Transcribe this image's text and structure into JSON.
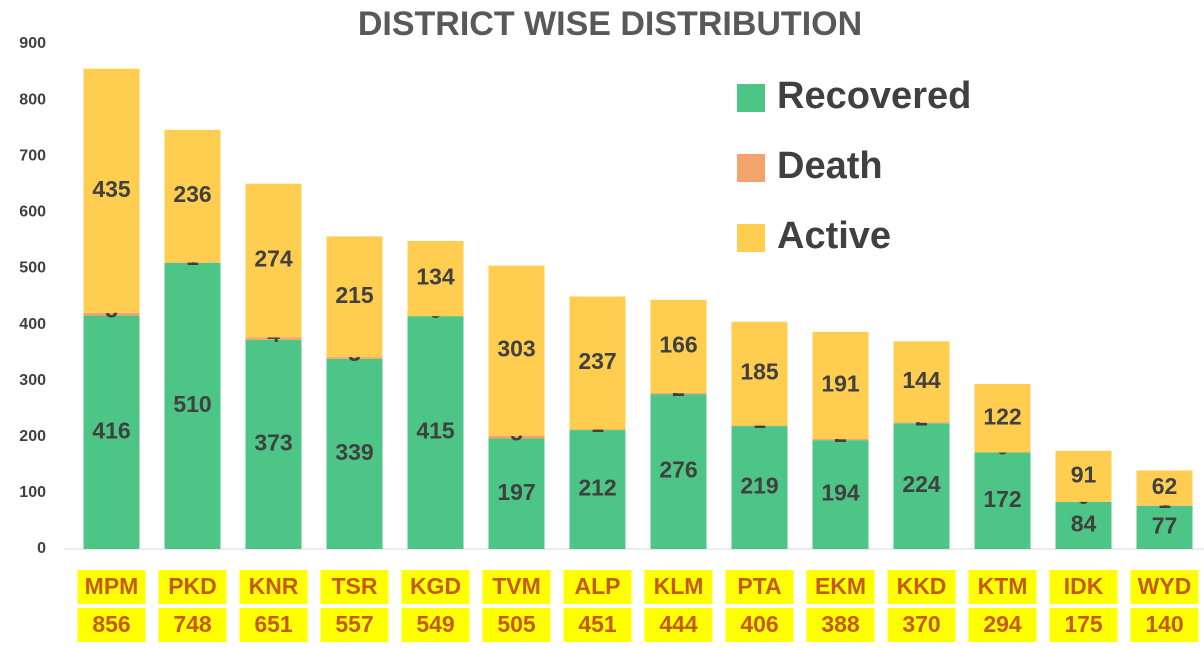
{
  "chart_data": {
    "type": "stacked_bar",
    "title": "DISTRICT WISE DISTRIBUTION",
    "categories": [
      "MPM",
      "PKD",
      "KNR",
      "TSR",
      "KGD",
      "TVM",
      "ALP",
      "KLM",
      "PTA",
      "EKM",
      "KKD",
      "KTM",
      "IDK",
      "WYD"
    ],
    "totals": [
      856,
      748,
      651,
      557,
      549,
      505,
      451,
      444,
      406,
      388,
      370,
      294,
      175,
      140
    ],
    "series": [
      {
        "name": "Recovered",
        "color": "#4dc586",
        "values": [
          416,
          510,
          373,
          339,
          415,
          197,
          212,
          276,
          219,
          194,
          224,
          172,
          84,
          77
        ]
      },
      {
        "name": "Death",
        "color": "#f3a36b",
        "values": [
          5,
          1,
          4,
          3,
          0,
          5,
          1,
          2,
          1,
          2,
          2,
          0,
          0,
          1
        ]
      },
      {
        "name": "Active",
        "color": "#ffcd4f",
        "values": [
          435,
          236,
          274,
          215,
          134,
          303,
          237,
          166,
          185,
          191,
          144,
          122,
          91,
          62
        ]
      }
    ],
    "ylim": [
      0,
      900
    ],
    "yticks": [
      0,
      100,
      200,
      300,
      400,
      500,
      600,
      700,
      800,
      900
    ],
    "grid": false,
    "legend": "top-right"
  }
}
